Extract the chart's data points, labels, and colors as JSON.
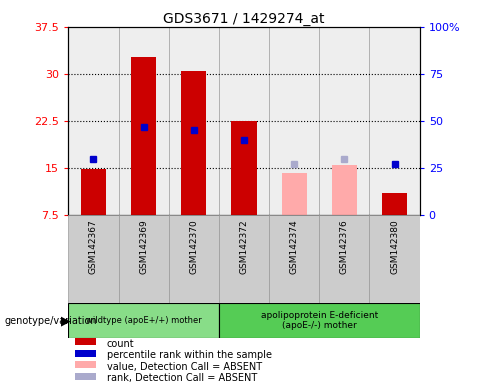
{
  "title": "GDS3671 / 1429274_at",
  "samples": [
    "GSM142367",
    "GSM142369",
    "GSM142370",
    "GSM142372",
    "GSM142374",
    "GSM142376",
    "GSM142380"
  ],
  "count_values": [
    14.8,
    32.7,
    30.5,
    22.5,
    null,
    null,
    11.0
  ],
  "count_values_absent": [
    null,
    null,
    null,
    null,
    14.2,
    15.5,
    null
  ],
  "percentile_values_raw": [
    30.0,
    47.0,
    45.0,
    40.0,
    null,
    null,
    27.0
  ],
  "percentile_values_absent_raw": [
    null,
    null,
    null,
    null,
    27.0,
    30.0,
    null
  ],
  "ylim_left": [
    7.5,
    37.5
  ],
  "ylim_right": [
    0,
    100
  ],
  "yticks_left": [
    7.5,
    15.0,
    22.5,
    30.0,
    37.5
  ],
  "yticks_right": [
    0,
    25,
    50,
    75,
    100
  ],
  "ytick_labels_left": [
    "7.5",
    "15",
    "22.5",
    "30",
    "37.5"
  ],
  "ytick_labels_right": [
    "0",
    "25",
    "50",
    "75",
    "100%"
  ],
  "bar_bottom": 7.5,
  "bar_width": 0.5,
  "group1_label": "wildtype (apoE+/+) mother",
  "group2_label": "apolipoprotein E-deficient\n(apoE-/-) mother",
  "group_label_prefix": "genotype/variation",
  "count_color": "#cc0000",
  "count_absent_color": "#ffaaaa",
  "percentile_color": "#0000cc",
  "percentile_absent_color": "#aaaacc",
  "genotype_box1_color": "#88dd88",
  "genotype_box2_color": "#55cc55",
  "label_band_color": "#cccccc"
}
